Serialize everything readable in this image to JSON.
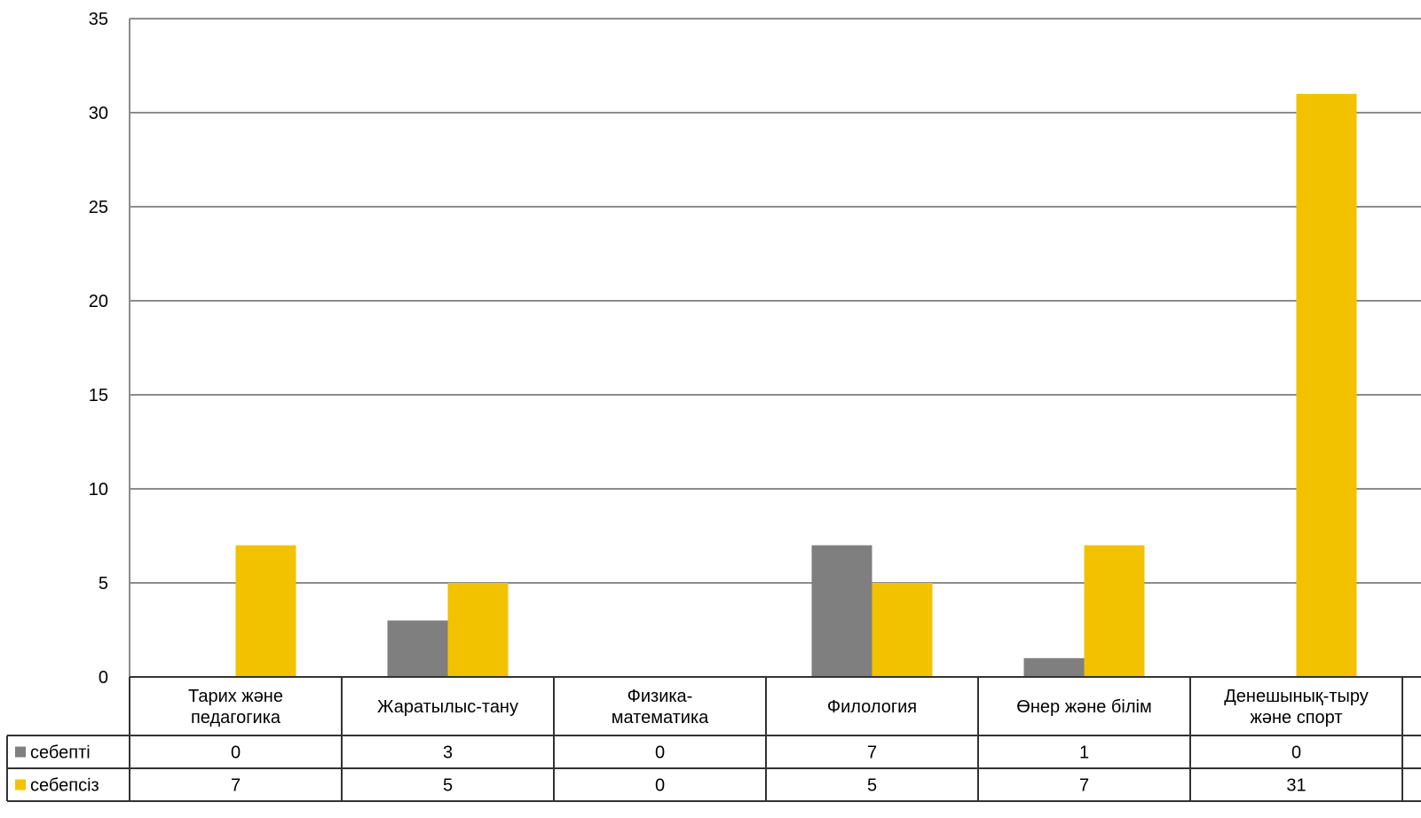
{
  "chart_data": {
    "type": "bar",
    "ylim": [
      0,
      35
    ],
    "yticks": [
      "0",
      "5",
      "10",
      "15",
      "20",
      "25",
      "30",
      "35"
    ],
    "grid": true,
    "legend_placement": "data-table-left",
    "categories": [
      [
        "Тарих және",
        "педагогика"
      ],
      [
        "Жаратылыс-тану"
      ],
      [
        "Физика-",
        "математика"
      ],
      [
        "Филология"
      ],
      [
        "Өнер және білім"
      ],
      [
        "Денешынық-тыру",
        "және спорт"
      ]
    ],
    "series": [
      {
        "name": "себепті",
        "color": "#7f7f7f",
        "values": [
          0,
          3,
          0,
          7,
          1,
          0
        ]
      },
      {
        "name": "себепсіз",
        "color": "#f2c200",
        "values": [
          7,
          5,
          0,
          5,
          7,
          31
        ]
      }
    ]
  }
}
